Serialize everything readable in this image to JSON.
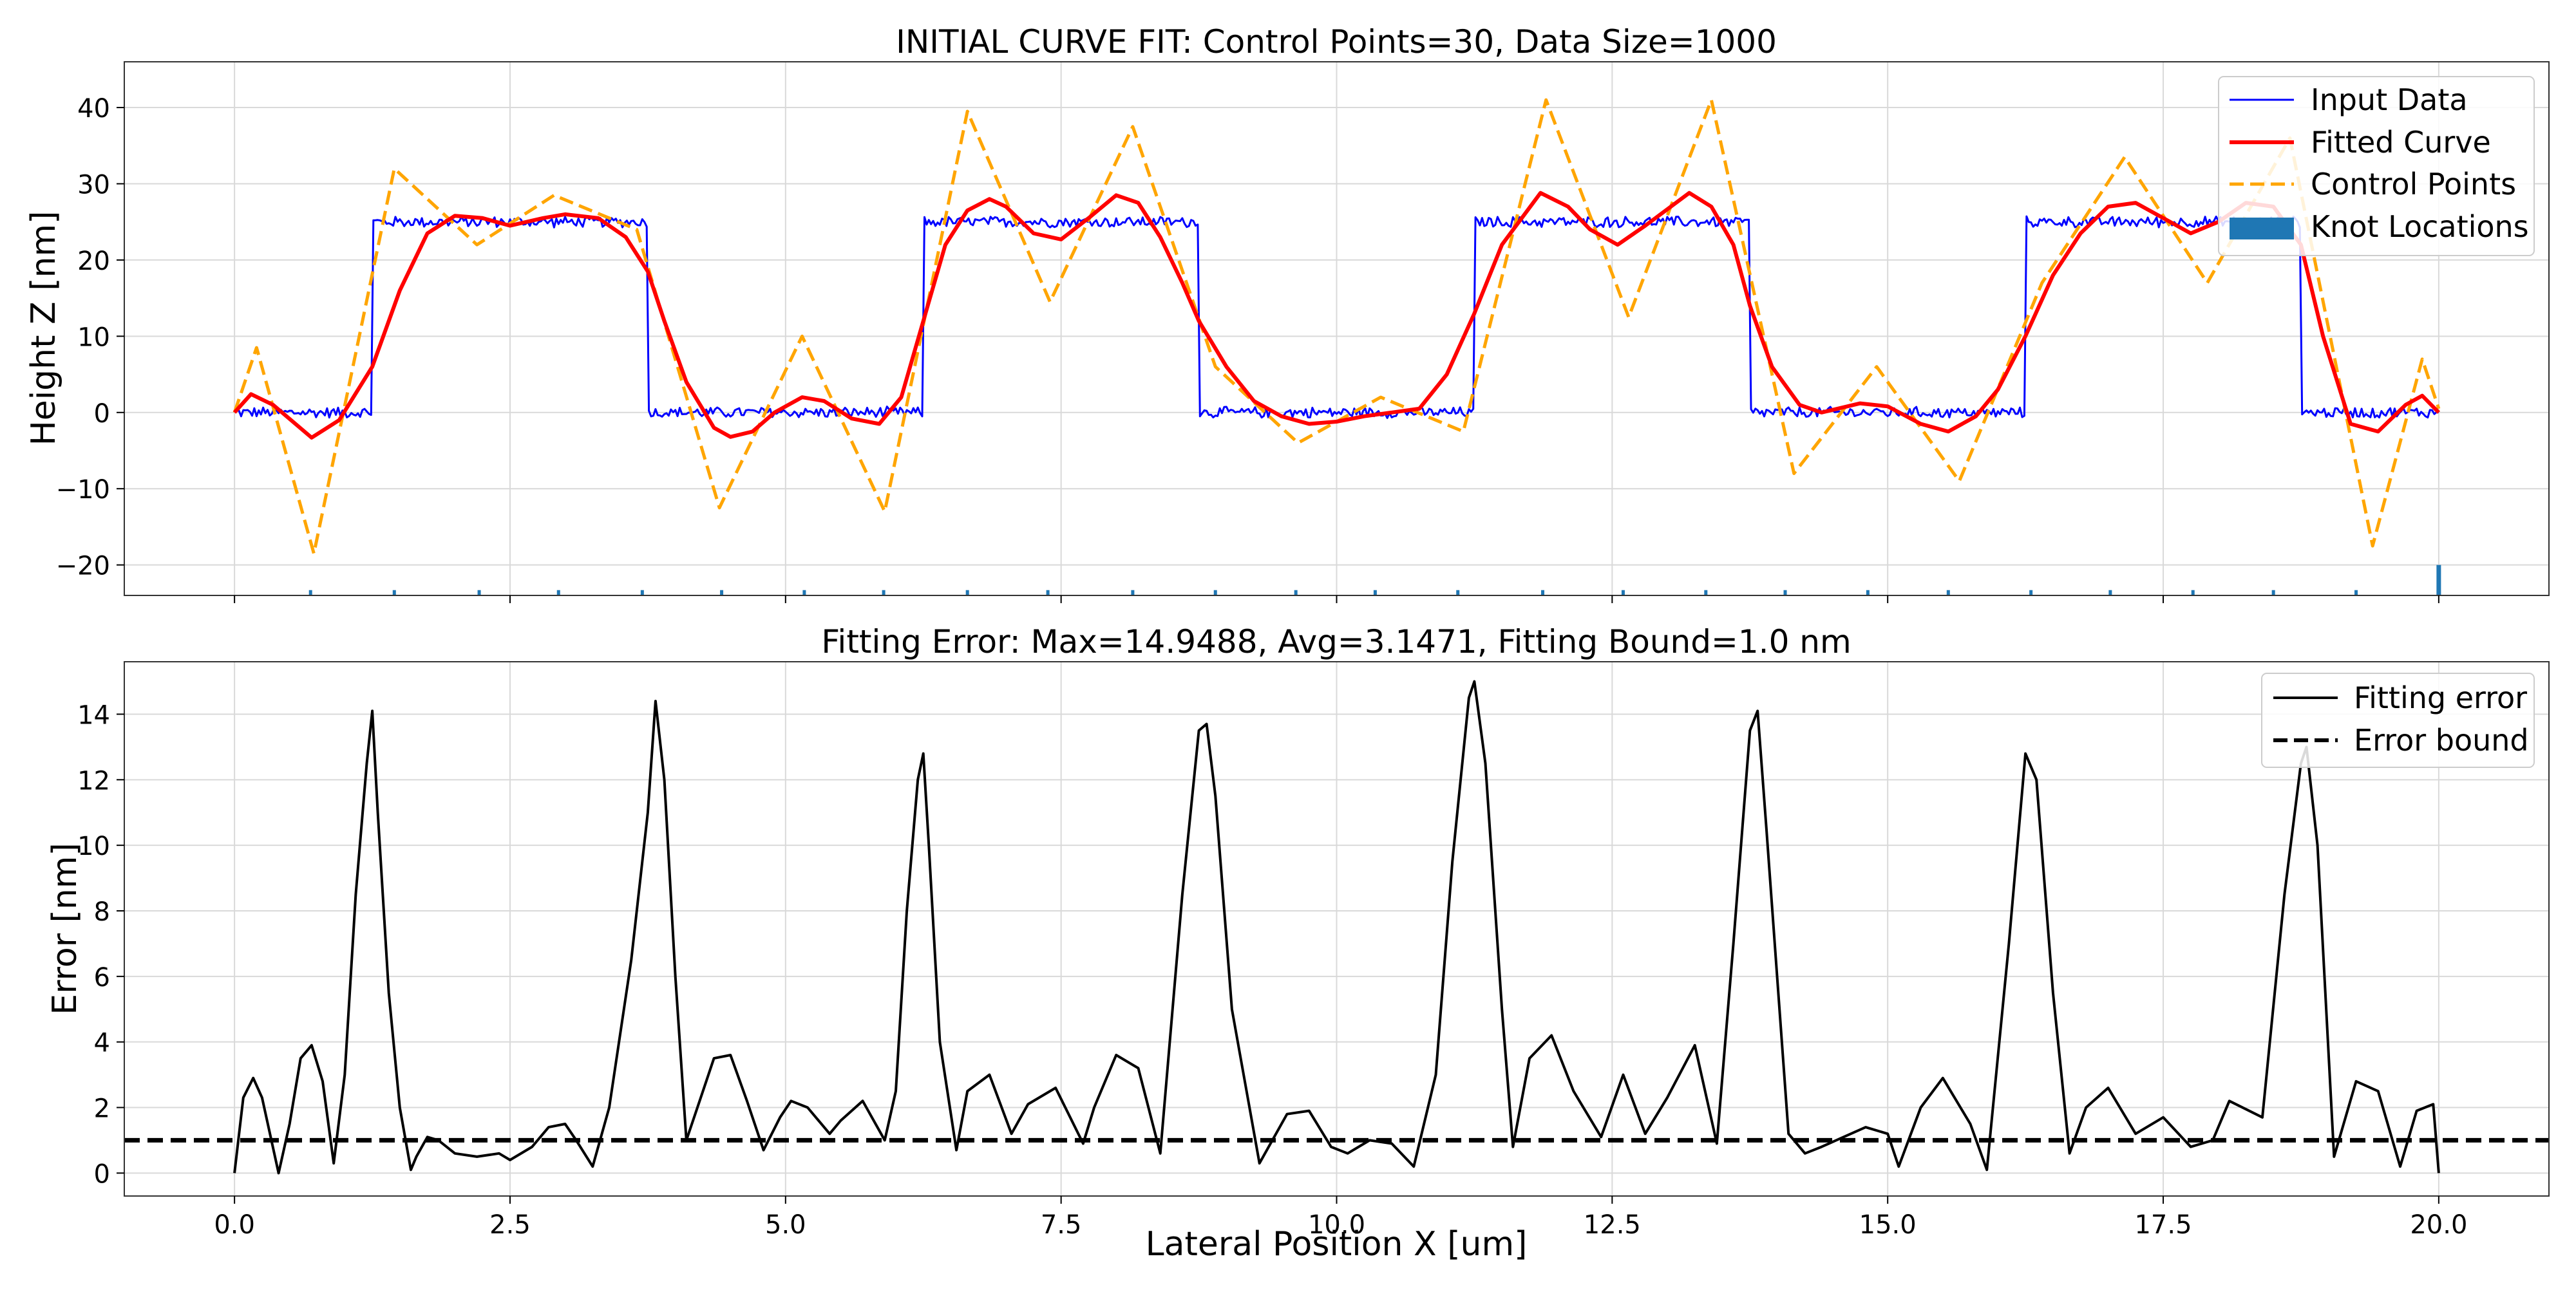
{
  "chart_data": [
    {
      "type": "line",
      "title": "INITIAL CURVE FIT: Control Points=30, Data Size=1000",
      "xlabel": "",
      "ylabel": "Height Z [nm]",
      "xlim": [
        -1.0,
        21.0
      ],
      "ylim": [
        -24,
        46
      ],
      "x_ticks": [
        0.0,
        2.5,
        5.0,
        7.5,
        10.0,
        12.5,
        15.0,
        17.5,
        20.0
      ],
      "y_ticks": [
        -20,
        -10,
        0,
        10,
        20,
        30,
        40
      ],
      "grid": true,
      "legend_position": "top-right",
      "series": [
        {
          "name": "Input Data",
          "style": "solid-thin",
          "color": "#0000ff",
          "segments": [
            {
              "x": [
                0.0,
                1.25
              ],
              "y": 0
            },
            {
              "x": [
                1.25,
                3.75
              ],
              "y": 25
            },
            {
              "x": [
                3.75,
                6.25
              ],
              "y": 0
            },
            {
              "x": [
                6.25,
                8.75
              ],
              "y": 25
            },
            {
              "x": [
                8.75,
                11.25
              ],
              "y": 0
            },
            {
              "x": [
                11.25,
                13.75
              ],
              "y": 25
            },
            {
              "x": [
                13.75,
                16.25
              ],
              "y": 0
            },
            {
              "x": [
                16.25,
                18.75
              ],
              "y": 25
            },
            {
              "x": [
                18.75,
                20.0
              ],
              "y": 0
            }
          ],
          "noise_amplitude": 0.8
        },
        {
          "name": "Fitted Curve",
          "style": "solid",
          "color": "#ff0000",
          "x": [
            0.0,
            0.15,
            0.35,
            0.7,
            0.95,
            1.25,
            1.5,
            1.75,
            2.0,
            2.25,
            2.5,
            2.8,
            3.0,
            3.3,
            3.55,
            3.75,
            3.9,
            4.1,
            4.35,
            4.5,
            4.7,
            4.9,
            5.15,
            5.35,
            5.6,
            5.85,
            6.05,
            6.25,
            6.45,
            6.65,
            6.85,
            7.0,
            7.25,
            7.5,
            7.75,
            8.0,
            8.2,
            8.4,
            8.6,
            8.75,
            9.0,
            9.25,
            9.5,
            9.75,
            10.0,
            10.25,
            10.5,
            10.75,
            11.0,
            11.25,
            11.5,
            11.85,
            12.1,
            12.3,
            12.55,
            12.8,
            13.2,
            13.4,
            13.6,
            13.75,
            13.95,
            14.2,
            14.4,
            14.75,
            15.0,
            15.3,
            15.55,
            15.8,
            16.0,
            16.25,
            16.5,
            16.75,
            17.0,
            17.25,
            17.5,
            17.75,
            18.0,
            18.25,
            18.5,
            18.75,
            18.95,
            19.2,
            19.45,
            19.7,
            19.85,
            20.0
          ],
          "y": [
            0,
            2.4,
            1.0,
            -3.3,
            -1.0,
            6.0,
            16.0,
            23.5,
            25.8,
            25.5,
            24.5,
            25.5,
            26.0,
            25.5,
            23.0,
            18.5,
            12.0,
            4.0,
            -2.0,
            -3.2,
            -2.5,
            0.0,
            2.0,
            1.5,
            -0.8,
            -1.5,
            2.0,
            12.0,
            22.0,
            26.5,
            28.0,
            27.0,
            23.5,
            22.7,
            25.5,
            28.5,
            27.5,
            23.0,
            17.0,
            12.0,
            6.0,
            1.5,
            -0.5,
            -1.5,
            -1.2,
            -0.5,
            0.0,
            0.5,
            5.0,
            13.0,
            22.0,
            28.8,
            27.0,
            24.0,
            22.0,
            24.5,
            28.8,
            27.0,
            22.0,
            14.0,
            6.0,
            1.0,
            0.0,
            1.2,
            0.8,
            -1.5,
            -2.5,
            -0.5,
            3.0,
            10.0,
            18.0,
            23.5,
            27.0,
            27.5,
            25.5,
            23.5,
            25.0,
            27.5,
            27.0,
            22.0,
            10.0,
            -1.5,
            -2.5,
            1.0,
            2.2,
            0
          ]
        },
        {
          "name": "Control Points",
          "style": "dashed",
          "color": "#ffa500",
          "x": [
            0.0,
            0.2,
            0.72,
            1.45,
            2.2,
            2.9,
            3.65,
            4.4,
            5.15,
            5.9,
            6.65,
            7.4,
            8.15,
            8.9,
            9.65,
            10.4,
            11.15,
            11.9,
            12.65,
            13.4,
            14.15,
            14.9,
            15.65,
            16.4,
            17.15,
            17.9,
            18.65,
            19.4,
            19.85,
            20.0
          ],
          "y": [
            0,
            8.5,
            -18.5,
            32.0,
            22.0,
            28.5,
            24.0,
            -12.5,
            10.0,
            -13.0,
            39.5,
            14.5,
            37.5,
            6.0,
            -4.0,
            2.0,
            -2.5,
            41.0,
            12.5,
            41.0,
            -8.0,
            6.0,
            -9.0,
            17.0,
            33.5,
            17.0,
            36.0,
            -17.5,
            7.0,
            0.5
          ]
        },
        {
          "name": "Knot Locations",
          "style": "ticks",
          "color": "#1f77b4",
          "x": [
            0.0,
            0.69,
            1.45,
            2.22,
            2.94,
            3.7,
            4.42,
            5.17,
            5.89,
            6.65,
            7.38,
            8.15,
            8.9,
            9.63,
            10.35,
            11.1,
            11.87,
            12.6,
            13.35,
            14.07,
            14.82,
            15.55,
            16.3,
            17.02,
            17.77,
            18.5,
            19.25,
            20.0
          ],
          "y": [
            -24,
            -23.3,
            -23.3,
            -23.3,
            -23.3,
            -23.3,
            -23.3,
            -23.3,
            -23.3,
            -23.3,
            -23.3,
            -23.3,
            -23.3,
            -23.3,
            -23.3,
            -23.3,
            -23.3,
            -23.3,
            -23.3,
            -23.3,
            -23.3,
            -23.3,
            -23.3,
            -23.3,
            -23.3,
            -23.3,
            -23.3,
            -20
          ]
        }
      ]
    },
    {
      "type": "line",
      "title": "Fitting Error: Max=14.9488, Avg=3.1471, Fitting Bound=1.0 nm",
      "xlabel": "Lateral Position X [um]",
      "ylabel": "Error [nm]",
      "xlim": [
        -1.0,
        21.0
      ],
      "ylim": [
        -0.7,
        15.6
      ],
      "x_ticks": [
        0.0,
        2.5,
        5.0,
        7.5,
        10.0,
        12.5,
        15.0,
        17.5,
        20.0
      ],
      "x_tick_labels": [
        "0.0",
        "2.5",
        "5.0",
        "7.5",
        "10.0",
        "12.5",
        "15.0",
        "17.5",
        "20.0"
      ],
      "y_ticks": [
        0,
        2,
        4,
        6,
        8,
        10,
        12,
        14
      ],
      "grid": true,
      "legend_position": "top-right",
      "series": [
        {
          "name": "Fitting error",
          "style": "solid",
          "color": "#000000",
          "x": [
            0.0,
            0.08,
            0.17,
            0.25,
            0.4,
            0.5,
            0.6,
            0.7,
            0.8,
            0.9,
            1.0,
            1.1,
            1.2,
            1.25,
            1.3,
            1.4,
            1.5,
            1.6,
            1.65,
            1.75,
            1.85,
            2.0,
            2.2,
            2.4,
            2.5,
            2.7,
            2.85,
            3.0,
            3.1,
            3.25,
            3.4,
            3.6,
            3.75,
            3.82,
            3.9,
            4.0,
            4.1,
            4.25,
            4.35,
            4.5,
            4.65,
            4.8,
            4.95,
            5.05,
            5.2,
            5.4,
            5.5,
            5.7,
            5.9,
            6.0,
            6.1,
            6.2,
            6.25,
            6.3,
            6.4,
            6.55,
            6.65,
            6.85,
            7.05,
            7.2,
            7.45,
            7.7,
            7.8,
            8.0,
            8.2,
            8.4,
            8.6,
            8.75,
            8.82,
            8.9,
            9.05,
            9.3,
            9.55,
            9.75,
            9.95,
            10.1,
            10.3,
            10.5,
            10.7,
            10.9,
            11.05,
            11.2,
            11.25,
            11.35,
            11.5,
            11.6,
            11.75,
            11.95,
            12.15,
            12.4,
            12.6,
            12.8,
            13.0,
            13.25,
            13.45,
            13.6,
            13.75,
            13.82,
            13.9,
            14.1,
            14.25,
            14.4,
            14.6,
            14.8,
            15.0,
            15.1,
            15.3,
            15.5,
            15.75,
            15.9,
            16.1,
            16.25,
            16.35,
            16.5,
            16.65,
            16.8,
            17.0,
            17.25,
            17.5,
            17.75,
            17.95,
            18.1,
            18.4,
            18.6,
            18.75,
            18.8,
            18.9,
            19.05,
            19.25,
            19.45,
            19.65,
            19.8,
            19.95,
            20.0
          ],
          "y": [
            0.0,
            2.3,
            2.9,
            2.3,
            0.0,
            1.5,
            3.5,
            3.9,
            2.8,
            0.3,
            3.0,
            8.5,
            12.5,
            14.1,
            11.0,
            5.5,
            2.0,
            0.1,
            0.5,
            1.1,
            1.0,
            0.6,
            0.5,
            0.6,
            0.4,
            0.8,
            1.4,
            1.5,
            1.0,
            0.2,
            2.0,
            6.5,
            11.0,
            14.4,
            12.0,
            6.0,
            1.0,
            2.5,
            3.5,
            3.6,
            2.2,
            0.7,
            1.7,
            2.2,
            2.0,
            1.2,
            1.6,
            2.2,
            1.0,
            2.5,
            8.0,
            12.0,
            12.8,
            10.0,
            4.0,
            0.7,
            2.5,
            3.0,
            1.2,
            2.1,
            2.6,
            0.9,
            2.0,
            3.6,
            3.2,
            0.6,
            8.5,
            13.5,
            13.7,
            11.5,
            5.0,
            0.3,
            1.8,
            1.9,
            0.8,
            0.6,
            1.0,
            0.9,
            0.2,
            3.0,
            9.5,
            14.5,
            15.0,
            12.5,
            5.0,
            0.8,
            3.5,
            4.2,
            2.5,
            1.1,
            3.0,
            1.2,
            2.3,
            3.9,
            0.9,
            7.0,
            13.5,
            14.1,
            10.5,
            1.2,
            0.6,
            0.8,
            1.1,
            1.4,
            1.2,
            0.2,
            2.0,
            2.9,
            1.5,
            0.1,
            7.0,
            12.8,
            12.0,
            5.5,
            0.6,
            2.0,
            2.6,
            1.2,
            1.7,
            0.8,
            1.0,
            2.2,
            1.7,
            8.5,
            12.5,
            13.0,
            10.0,
            0.5,
            2.8,
            2.5,
            0.2,
            1.9,
            2.1,
            0.0
          ]
        },
        {
          "name": "Error bound",
          "style": "dashed",
          "color": "#000000",
          "x": [
            -1.0,
            21.0
          ],
          "y": [
            1.0,
            1.0
          ]
        }
      ]
    }
  ]
}
